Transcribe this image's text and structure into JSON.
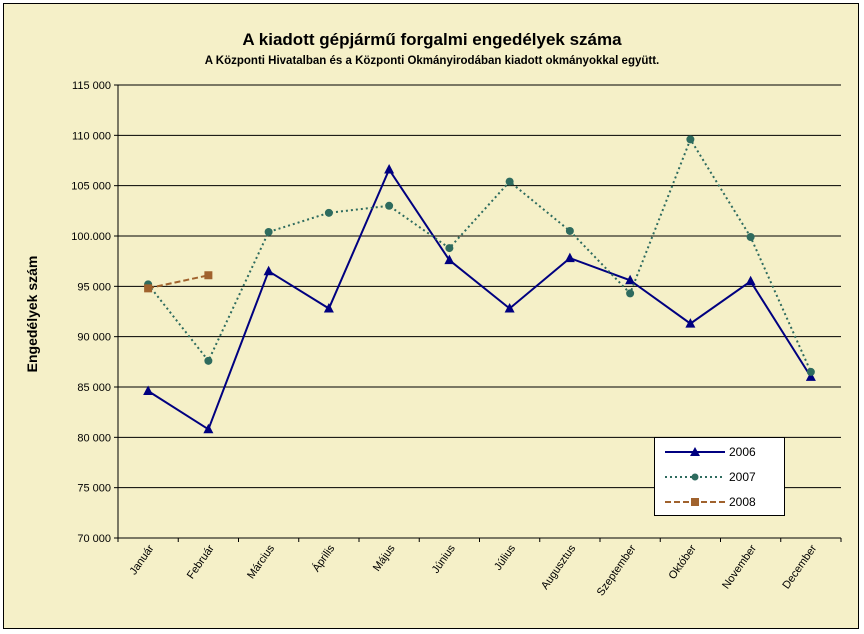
{
  "title": "A  kiadott gépjármű forgalmi engedélyek száma",
  "subtitle": "A  Központi Hivatalban és a Központi Okmányirodában kiadott okmányokkal együtt.",
  "chart_data": {
    "type": "line",
    "title": "A  kiadott gépjármű forgalmi engedélyek száma",
    "subtitle": "A  Központi Hivatalban és a Központi Okmányirodában kiadott okmányokkal együtt.",
    "xlabel": "",
    "ylabel": "Engedélyek szám",
    "ylim": [
      70000,
      115000
    ],
    "yticks": [
      70000,
      75000,
      80000,
      85000,
      90000,
      95000,
      100000,
      105000,
      110000,
      115000
    ],
    "ytick_labels": [
      "70 000",
      "75 000",
      "80 000",
      "85 000",
      "90 000",
      "95 000",
      "100.000",
      "105 000",
      "110 000",
      "115 000"
    ],
    "grid": "horizontal",
    "legend_position": "bottom-right",
    "categories": [
      "Január",
      "Február",
      "Március",
      "Április",
      "Május",
      "Június",
      "Július",
      "Augusztus",
      "Szeptember",
      "Október",
      "November",
      "December"
    ],
    "series": [
      {
        "name": "2006",
        "color": "#000080",
        "marker": "triangle",
        "line": "solid",
        "values": [
          84600,
          80800,
          96500,
          92800,
          106600,
          97600,
          92800,
          97800,
          95600,
          91300,
          95500,
          86000
        ]
      },
      {
        "name": "2007",
        "color": "#2e6b5e",
        "marker": "circle",
        "line": "dotted",
        "values": [
          95200,
          87600,
          100400,
          102300,
          103000,
          98800,
          105400,
          100500,
          94300,
          109600,
          99900,
          86500
        ]
      },
      {
        "name": "2008",
        "color": "#a0622d",
        "marker": "square",
        "line": "dashed",
        "values": [
          94800,
          96100,
          null,
          null,
          null,
          null,
          null,
          null,
          null,
          null,
          null,
          null
        ]
      }
    ]
  }
}
